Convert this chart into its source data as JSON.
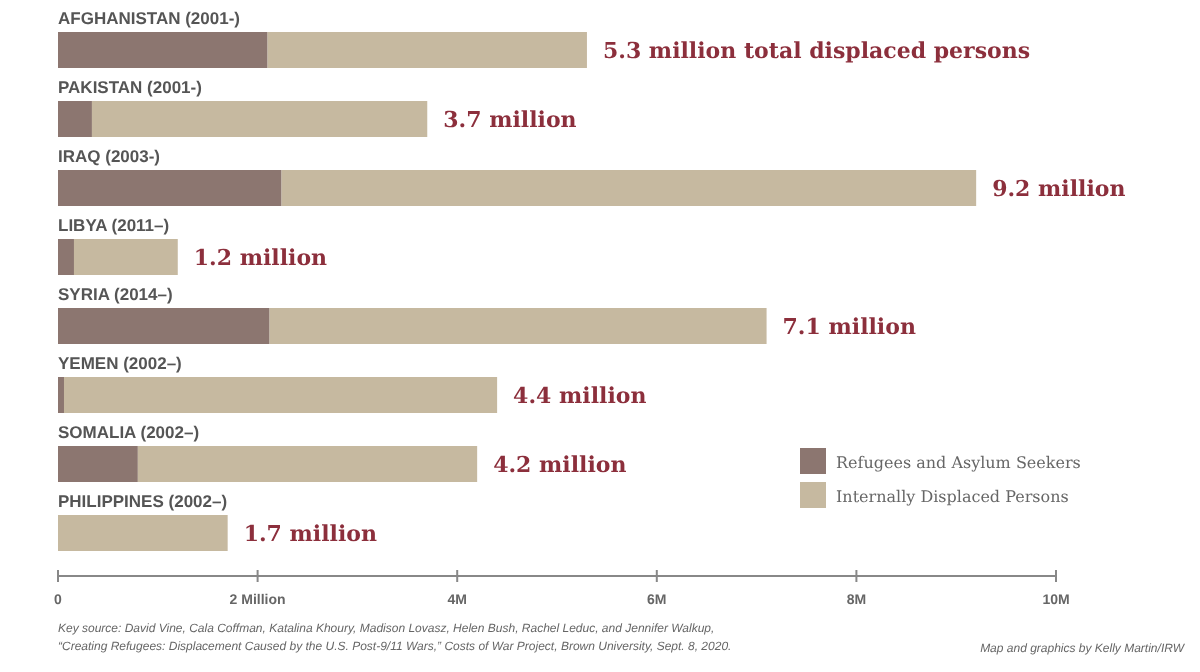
{
  "chart_data": {
    "type": "bar",
    "orientation": "horizontal",
    "stacked": true,
    "categories": [
      "AFGHANISTAN (2001-)",
      "PAKISTAN (2001-)",
      "IRAQ (2003-)",
      "LIBYA (2011–)",
      "SYRIA (2014–)",
      "YEMEN (2002–)",
      "SOMALIA (2002–)",
      "PHILIPPINES (2002–)"
    ],
    "series": [
      {
        "name": "Refugees and Asylum Seekers",
        "color": "#8c7670",
        "values": [
          2.1,
          0.34,
          2.24,
          0.16,
          2.12,
          0.06,
          0.8,
          0
        ]
      },
      {
        "name": "Internally Displaced Persons",
        "color": "#c6b9a0",
        "values": [
          3.2,
          3.36,
          6.96,
          1.04,
          4.98,
          4.34,
          3.4,
          1.7
        ]
      }
    ],
    "totals": [
      "5.3 million total displaced persons",
      "3.7 million",
      "9.2 million",
      "1.2 million",
      "7.1 million",
      "4.4 million",
      "4.2 million",
      "1.7 million"
    ],
    "xlim": [
      0,
      10
    ],
    "xticks": [
      0,
      {
        "value": 2,
        "label": "2 Million"
      },
      {
        "value": 4,
        "label": "4M"
      },
      {
        "value": 6,
        "label": "6M"
      },
      {
        "value": 8,
        "label": "8M"
      },
      {
        "value": 10,
        "label": "10M"
      }
    ],
    "legend": "bottom right",
    "grid": false,
    "annotations": [
      "Key source: David Vine, Cala Coffman, Katalina Khoury, Madison Lovasz, Helen Bush, Rachel Leduc, and Jennifer Walkup,",
      "“Creating Refugees: Displacement Caused by the U.S. Post-9/11 Wars,” Costs of War Project, Brown University, Sept. 8, 2020.",
      "Map and graphics by Kelly Martin/IRW"
    ]
  }
}
